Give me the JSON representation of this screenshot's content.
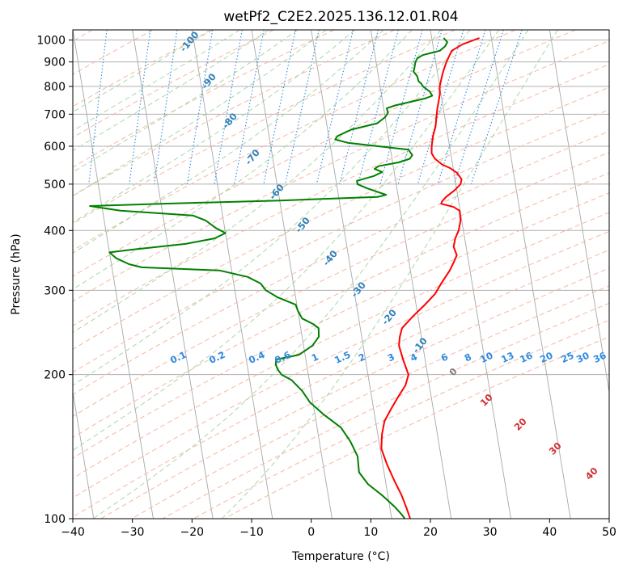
{
  "chart_data": {
    "type": "line",
    "title": "wetPf2_C2E2.2025.136.12.01.R04",
    "xlabel": "Temperature (°C)",
    "ylabel": "Pressure (hPa)",
    "xlim": [
      -40,
      50
    ],
    "ylim": [
      1050,
      100
    ],
    "y_scale": "log",
    "grid": true,
    "x_ticks": [
      "−40",
      "−30",
      "−20",
      "−10",
      "0",
      "10",
      "20",
      "30",
      "40",
      "50"
    ],
    "y_ticks": [
      "100",
      "200",
      "300",
      "400",
      "500",
      "600",
      "700",
      "800",
      "900",
      "1000"
    ],
    "series": [
      {
        "name": "temperature",
        "color": "#ff0000",
        "points": [
          [
            28.0,
            1010
          ],
          [
            25.0,
            980
          ],
          [
            23.0,
            950
          ],
          [
            22.3,
            920
          ],
          [
            21.8,
            900
          ],
          [
            21.0,
            860
          ],
          [
            20.5,
            830
          ],
          [
            20.0,
            800
          ],
          [
            19.8,
            770
          ],
          [
            19.5,
            750
          ],
          [
            19.0,
            720
          ],
          [
            18.6,
            690
          ],
          [
            18.2,
            660
          ],
          [
            17.5,
            630
          ],
          [
            17.0,
            600
          ],
          [
            16.8,
            580
          ],
          [
            17.2,
            565
          ],
          [
            18.2,
            550
          ],
          [
            19.5,
            540
          ],
          [
            20.5,
            528
          ],
          [
            21.1,
            512
          ],
          [
            20.8,
            500
          ],
          [
            19.6,
            485
          ],
          [
            18.0,
            470
          ],
          [
            17.2,
            460
          ],
          [
            17.0,
            455
          ],
          [
            19.0,
            448
          ],
          [
            19.9,
            440
          ],
          [
            19.8,
            420
          ],
          [
            19.2,
            400
          ],
          [
            18.4,
            385
          ],
          [
            17.9,
            370
          ],
          [
            18.2,
            355
          ],
          [
            17.6,
            345
          ],
          [
            16.6,
            330
          ],
          [
            14.8,
            310
          ],
          [
            13.5,
            295
          ],
          [
            11.5,
            280
          ],
          [
            9.2,
            265
          ],
          [
            7.0,
            250
          ],
          [
            6.4,
            240
          ],
          [
            6.0,
            230
          ],
          [
            6.3,
            215
          ],
          [
            6.8,
            200
          ],
          [
            6.0,
            190
          ],
          [
            4.5,
            180
          ],
          [
            3.0,
            170
          ],
          [
            1.5,
            160
          ],
          [
            0.7,
            150
          ],
          [
            0.2,
            140
          ],
          [
            0.7,
            130
          ],
          [
            1.5,
            120
          ],
          [
            2.3,
            112
          ],
          [
            2.8,
            105
          ],
          [
            3.1,
            100
          ]
        ]
      },
      {
        "name": "dewpoint",
        "color": "#008000",
        "points": [
          [
            22.0,
            1010
          ],
          [
            22.5,
            990
          ],
          [
            22.0,
            970
          ],
          [
            21.0,
            950
          ],
          [
            19.5,
            940
          ],
          [
            18.0,
            930
          ],
          [
            17.0,
            915
          ],
          [
            16.6,
            900
          ],
          [
            16.2,
            870
          ],
          [
            16.0,
            860
          ],
          [
            16.5,
            840
          ],
          [
            16.6,
            820
          ],
          [
            17.0,
            810
          ],
          [
            17.2,
            800
          ],
          [
            18.2,
            780
          ],
          [
            18.5,
            765
          ],
          [
            17.2,
            755
          ],
          [
            12.0,
            730
          ],
          [
            10.5,
            720
          ],
          [
            10.6,
            705
          ],
          [
            10.0,
            690
          ],
          [
            8.5,
            670
          ],
          [
            4.0,
            650
          ],
          [
            1.5,
            630
          ],
          [
            1.0,
            620
          ],
          [
            3.0,
            610
          ],
          [
            8.0,
            600
          ],
          [
            13.0,
            590
          ],
          [
            13.5,
            575
          ],
          [
            13.0,
            565
          ],
          [
            11.0,
            555
          ],
          [
            7.5,
            545
          ],
          [
            6.8,
            538
          ],
          [
            8.0,
            530
          ],
          [
            6.5,
            520
          ],
          [
            3.5,
            508
          ],
          [
            3.5,
            500
          ],
          [
            5.0,
            490
          ],
          [
            7.0,
            480
          ],
          [
            8.0,
            475
          ],
          [
            6.5,
            470
          ],
          [
            -10.0,
            462
          ],
          [
            -30.0,
            455
          ],
          [
            -42.0,
            450
          ],
          [
            -37.0,
            440
          ],
          [
            -25.0,
            430
          ],
          [
            -23.0,
            420
          ],
          [
            -21.5,
            405
          ],
          [
            -20.0,
            395
          ],
          [
            -22.0,
            385
          ],
          [
            -27.0,
            375
          ],
          [
            -36.0,
            365
          ],
          [
            -40.0,
            360
          ],
          [
            -39.0,
            350
          ],
          [
            -37.0,
            340
          ],
          [
            -35.0,
            335
          ],
          [
            -22.0,
            330
          ],
          [
            -17.5,
            320
          ],
          [
            -15.5,
            310
          ],
          [
            -14.8,
            300
          ],
          [
            -13.0,
            290
          ],
          [
            -10.2,
            280
          ],
          [
            -10.0,
            272
          ],
          [
            -9.5,
            262
          ],
          [
            -7.8,
            255
          ],
          [
            -7.0,
            250
          ],
          [
            -7.2,
            240
          ],
          [
            -8.5,
            230
          ],
          [
            -11.0,
            220
          ],
          [
            -15.0,
            215
          ],
          [
            -15.2,
            210
          ],
          [
            -15.0,
            205
          ],
          [
            -14.5,
            200
          ],
          [
            -13.0,
            195
          ],
          [
            -11.5,
            185
          ],
          [
            -10.5,
            175
          ],
          [
            -8.5,
            165
          ],
          [
            -6.0,
            155
          ],
          [
            -4.8,
            145
          ],
          [
            -4.0,
            135
          ],
          [
            -4.2,
            125
          ],
          [
            -3.0,
            118
          ],
          [
            -1.0,
            112
          ],
          [
            0.8,
            106
          ],
          [
            1.8,
            102
          ],
          [
            2.2,
            100
          ]
        ]
      }
    ],
    "background_lines": {
      "isotherm_labels": [
        "-100",
        "-90",
        "-80",
        "-70",
        "-60",
        "-50",
        "-40",
        "-30",
        "-20",
        "-10"
      ],
      "mixing_ratio_labels": [
        "0.1",
        "0.2",
        "0.4",
        "0.6",
        "1",
        "1.5",
        "2",
        "3",
        "4",
        "6",
        "8",
        "10",
        "13",
        "16",
        "20",
        "25",
        "30",
        "36"
      ],
      "extra_labels": [
        "0",
        "10",
        "20",
        "30",
        "40"
      ],
      "colors": {
        "skewed_isotherms": "#a8a8a8",
        "isotherm_labels": "#2f80b8",
        "dry_adiabats": "#f4b8a2",
        "moist_adiabats": "#a8d8a8",
        "mixing_ratio": "#2f8be0",
        "extra_label_zero": "#808080",
        "extra_labels": "#d03030"
      }
    }
  }
}
